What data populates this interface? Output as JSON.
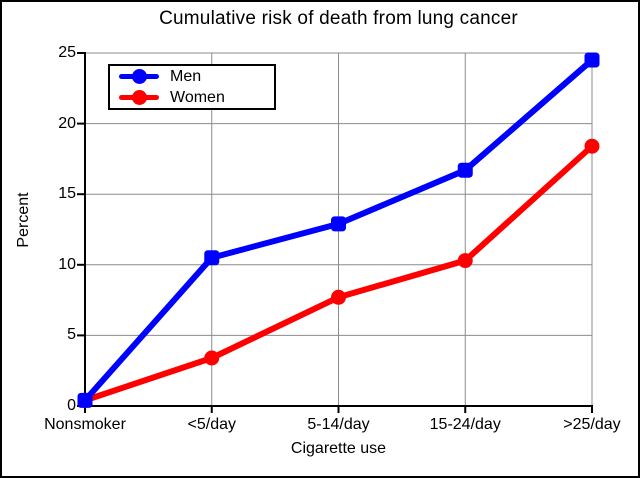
{
  "window": {
    "title": "Cumulative risk of death from lung cancer"
  },
  "chart_data": {
    "type": "line",
    "title": "Cumulative risk of death from lung cancer",
    "xlabel": "Cigarette use",
    "ylabel": "Percent",
    "categories": [
      "Nonsmoker",
      "<5/day",
      "5-14/day",
      "15-24/day",
      ">25/day"
    ],
    "yticks": [
      0,
      5,
      10,
      15,
      20,
      25
    ],
    "ylim": [
      0,
      25
    ],
    "grid": true,
    "legend_position": "top-left",
    "series": [
      {
        "name": "Men",
        "color": "#0000ff",
        "marker": "square",
        "values": [
          0.4,
          10.5,
          12.9,
          16.7,
          24.5
        ]
      },
      {
        "name": "Women",
        "color": "#ff0000",
        "marker": "circle",
        "values": [
          0.4,
          3.4,
          7.7,
          10.3,
          18.4
        ]
      }
    ],
    "style_colors": {
      "grid": "#8c8c8c",
      "axis": "#000000",
      "background": "#ffffff",
      "text": "#000000"
    }
  }
}
